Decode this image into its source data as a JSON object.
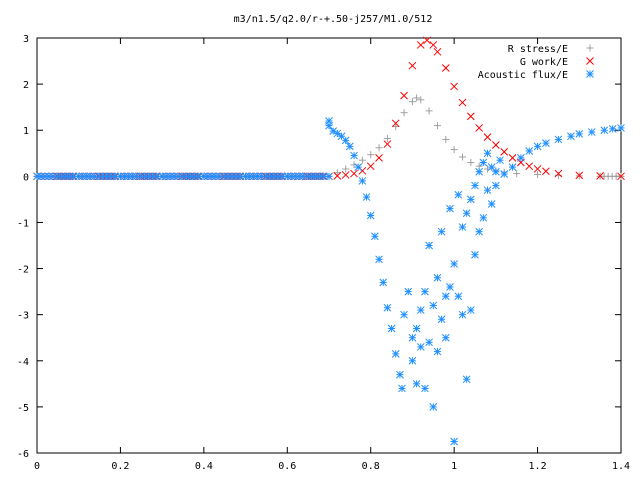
{
  "chart_data": {
    "type": "scatter",
    "title": "m3/n1.5/q2.0/r-+.50-j257/M1.0/512",
    "xlabel": "",
    "ylabel": "",
    "xlim": [
      0,
      1.4
    ],
    "ylim": [
      -6,
      3
    ],
    "x_ticks": [
      0,
      0.2,
      0.4,
      0.6,
      0.8,
      1,
      1.2,
      1.4
    ],
    "x_tick_labels": [
      "0",
      "0.2",
      "0.4",
      "0.6",
      "0.8",
      "1",
      "1.2",
      "1.4"
    ],
    "y_ticks": [
      -6,
      -5,
      -4,
      -3,
      -2,
      -1,
      0,
      1,
      2,
      3
    ],
    "y_tick_labels": [
      "-6",
      "-5",
      "-4",
      "-3",
      "-2",
      "-1",
      "0",
      "1",
      "2",
      "3"
    ],
    "grid": false,
    "legend_position": "top-right",
    "series": [
      {
        "name": "R stress/E",
        "marker": "plus",
        "color": "#a0a0a0",
        "x": [
          0.0,
          0.1,
          0.2,
          0.3,
          0.4,
          0.5,
          0.6,
          0.7,
          0.72,
          0.74,
          0.76,
          0.78,
          0.8,
          0.82,
          0.84,
          0.86,
          0.88,
          0.9,
          0.91,
          0.92,
          0.94,
          0.96,
          0.98,
          1.0,
          1.02,
          1.04,
          1.06,
          1.08,
          1.1,
          1.12,
          1.15,
          1.2,
          1.25,
          1.3,
          1.35,
          1.4
        ],
        "y": [
          0,
          0,
          0,
          0,
          0,
          0,
          0,
          0.0,
          0.08,
          0.16,
          0.25,
          0.35,
          0.47,
          0.62,
          0.82,
          1.08,
          1.38,
          1.62,
          1.7,
          1.66,
          1.42,
          1.1,
          0.8,
          0.58,
          0.42,
          0.3,
          0.22,
          0.16,
          0.12,
          0.09,
          0.06,
          0.04,
          0.02,
          0.01,
          0.0,
          0.0
        ]
      },
      {
        "name": "G work/E",
        "marker": "cross",
        "color": "#ff0000",
        "x": [
          0.0,
          0.1,
          0.2,
          0.3,
          0.4,
          0.5,
          0.6,
          0.7,
          0.72,
          0.74,
          0.76,
          0.78,
          0.8,
          0.82,
          0.84,
          0.86,
          0.88,
          0.9,
          0.92,
          0.935,
          0.95,
          0.96,
          0.98,
          1.0,
          1.02,
          1.04,
          1.06,
          1.08,
          1.1,
          1.12,
          1.14,
          1.16,
          1.18,
          1.2,
          1.22,
          1.25,
          1.3,
          1.35,
          1.4
        ],
        "y": [
          0,
          0,
          0,
          0,
          0,
          0,
          0,
          0.0,
          0.01,
          0.03,
          0.06,
          0.12,
          0.22,
          0.4,
          0.7,
          1.15,
          1.75,
          2.4,
          2.85,
          2.95,
          2.85,
          2.7,
          2.35,
          1.95,
          1.6,
          1.3,
          1.05,
          0.85,
          0.68,
          0.53,
          0.4,
          0.3,
          0.22,
          0.16,
          0.11,
          0.06,
          0.02,
          0.01,
          0.0
        ]
      },
      {
        "name": "Acoustic flux/E",
        "marker": "star",
        "color": "#1f8fff",
        "x": [
          0.0,
          0.05,
          0.1,
          0.15,
          0.2,
          0.25,
          0.3,
          0.35,
          0.4,
          0.45,
          0.5,
          0.55,
          0.6,
          0.65,
          0.7,
          0.7,
          0.7,
          0.71,
          0.72,
          0.73,
          0.74,
          0.75,
          0.76,
          0.77,
          0.78,
          0.79,
          0.8,
          0.81,
          0.82,
          0.83,
          0.84,
          0.85,
          0.86,
          0.87,
          0.875,
          0.88,
          0.89,
          0.9,
          0.9,
          0.91,
          0.91,
          0.92,
          0.92,
          0.93,
          0.93,
          0.94,
          0.94,
          0.95,
          0.95,
          0.96,
          0.96,
          0.97,
          0.97,
          0.98,
          0.98,
          0.99,
          0.99,
          1.0,
          1.0,
          1.01,
          1.01,
          1.02,
          1.02,
          1.03,
          1.03,
          1.04,
          1.04,
          1.05,
          1.05,
          1.06,
          1.06,
          1.07,
          1.07,
          1.08,
          1.08,
          1.09,
          1.09,
          1.1,
          1.1,
          1.11,
          1.12,
          1.14,
          1.16,
          1.18,
          1.2,
          1.22,
          1.25,
          1.28,
          1.3,
          1.33,
          1.36,
          1.38,
          1.4
        ],
        "y": [
          0,
          0,
          0,
          0,
          0,
          0,
          0,
          0,
          0,
          0,
          0,
          0,
          0,
          0,
          0,
          1.2,
          1.1,
          0.98,
          0.93,
          0.87,
          0.78,
          0.65,
          0.45,
          0.2,
          -0.1,
          -0.45,
          -0.85,
          -1.3,
          -1.8,
          -2.3,
          -2.85,
          -3.3,
          -3.85,
          -4.3,
          -4.6,
          -3.0,
          -2.5,
          -3.5,
          -4.0,
          -3.3,
          -4.5,
          -2.9,
          -3.7,
          -4.6,
          -2.5,
          -3.6,
          -1.5,
          -5.0,
          -2.8,
          -2.2,
          -3.8,
          -3.1,
          -1.2,
          -2.6,
          -3.5,
          -0.7,
          -2.4,
          -5.75,
          -1.9,
          -2.6,
          -0.4,
          -3.0,
          -1.1,
          -4.4,
          -0.8,
          -2.9,
          -0.5,
          -1.7,
          -0.2,
          -1.2,
          0.1,
          -0.9,
          0.3,
          -0.3,
          0.5,
          -0.6,
          0.2,
          0.1,
          -0.2,
          0.35,
          0.05,
          0.2,
          0.4,
          0.55,
          0.65,
          0.72,
          0.8,
          0.87,
          0.92,
          0.96,
          1.0,
          1.03,
          1.05
        ]
      }
    ]
  }
}
